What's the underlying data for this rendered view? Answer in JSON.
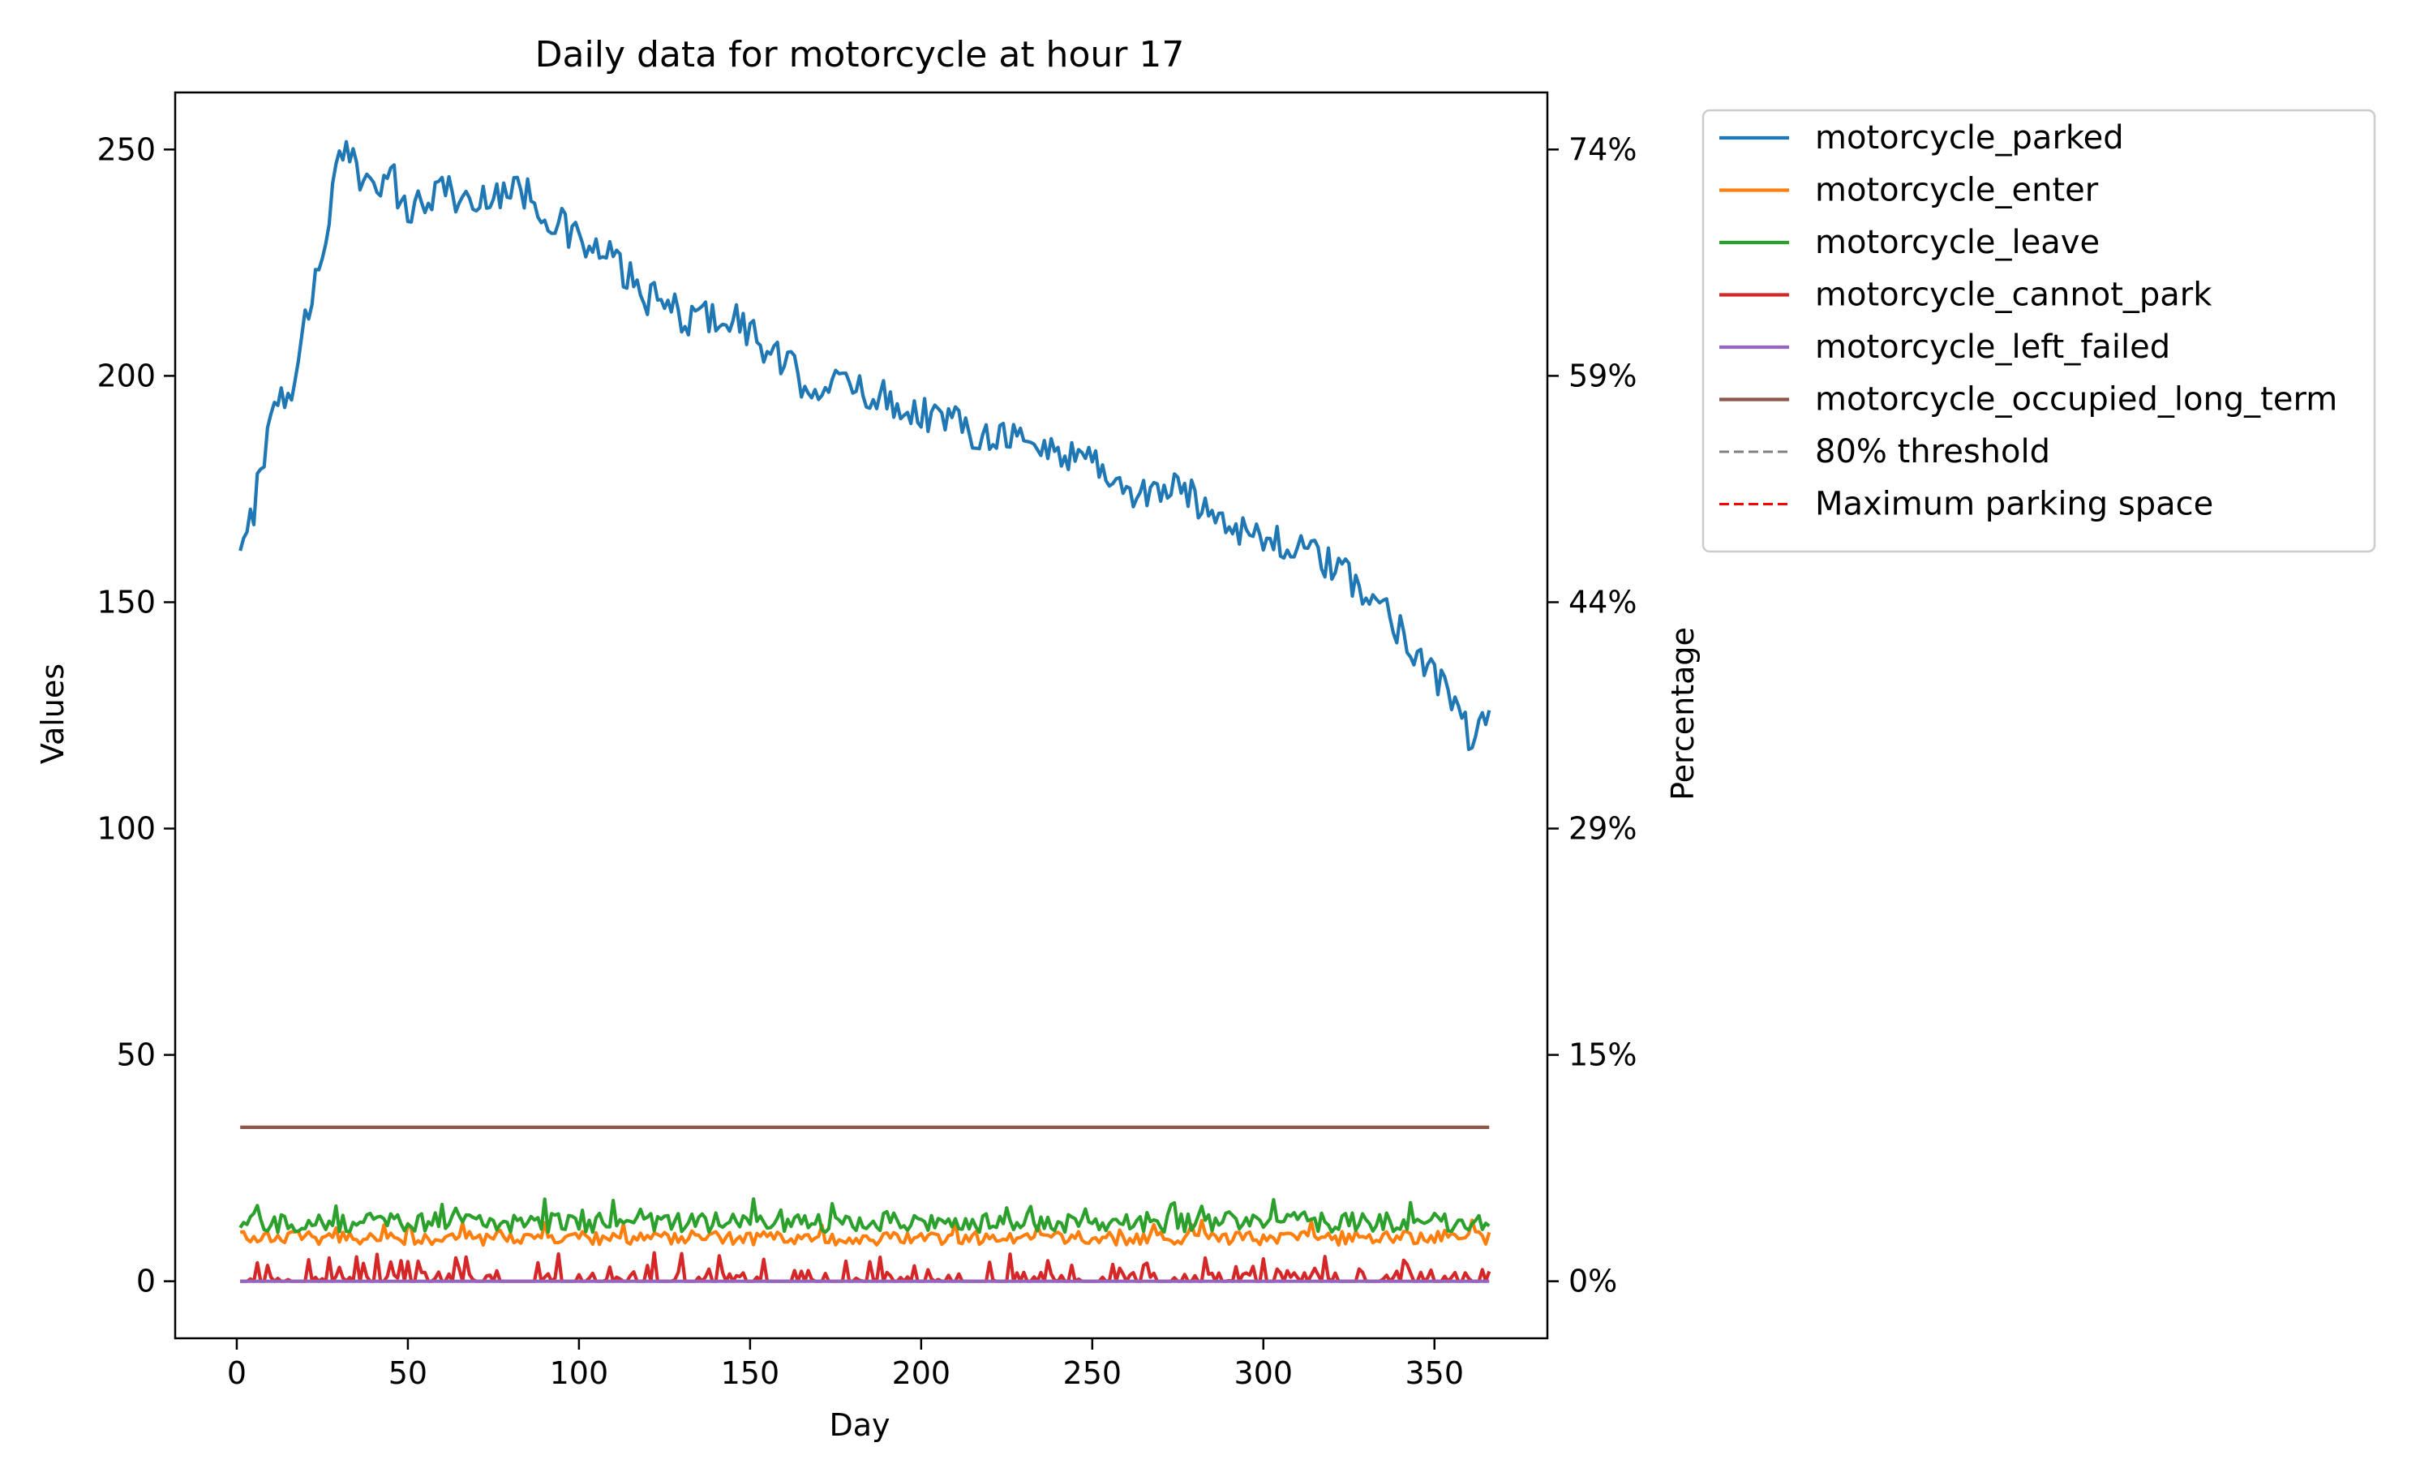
{
  "chart_data": {
    "type": "line",
    "title": "Daily data for motorcycle at hour 17",
    "xlabel": "Day",
    "ylabel": "Values",
    "ylabel_right": "Percentage",
    "xlim": [
      -18,
      383
    ],
    "ylim": [
      -12.6,
      262.6
    ],
    "x_ticks": [
      0,
      50,
      100,
      150,
      200,
      250,
      300,
      350
    ],
    "y_ticks": [
      0,
      50,
      100,
      150,
      200,
      250
    ],
    "right_axis": {
      "tick_values": [
        0,
        50,
        100,
        150,
        200,
        250
      ],
      "tick_labels": [
        "0%",
        "15%",
        "29%",
        "44%",
        "59%",
        "74%"
      ]
    },
    "grid": false,
    "legend_position": "outside-right-top",
    "legend": [
      {
        "label": "motorcycle_parked",
        "color": "#1f77b4",
        "style": "solid"
      },
      {
        "label": "motorcycle_enter",
        "color": "#ff7f0e",
        "style": "solid"
      },
      {
        "label": "motorcycle_leave",
        "color": "#2ca02c",
        "style": "solid"
      },
      {
        "label": "motorcycle_cannot_park",
        "color": "#d62728",
        "style": "solid"
      },
      {
        "label": "motorcycle_left_failed",
        "color": "#9467bd",
        "style": "solid"
      },
      {
        "label": "motorcycle_occupied_long_term",
        "color": "#8c564b",
        "style": "solid"
      },
      {
        "label": "80% threshold",
        "color": "#808080",
        "style": "dashed"
      },
      {
        "label": "Maximum parking space",
        "color": "#ff0000",
        "style": "dashed"
      }
    ],
    "x_range": [
      1,
      366
    ],
    "series": [
      {
        "name": "motorcycle_parked",
        "color": "#1f77b4",
        "anchors": [
          [
            1,
            159
          ],
          [
            3,
            164
          ],
          [
            5,
            171
          ],
          [
            6,
            179
          ],
          [
            8,
            183
          ],
          [
            10,
            190
          ],
          [
            12,
            196
          ],
          [
            14,
            193
          ],
          [
            17,
            201
          ],
          [
            20,
            212
          ],
          [
            22,
            217
          ],
          [
            24,
            225
          ],
          [
            26,
            232
          ],
          [
            28,
            240
          ],
          [
            30,
            248
          ],
          [
            33,
            248
          ],
          [
            36,
            244
          ],
          [
            40,
            245
          ],
          [
            44,
            242
          ],
          [
            46,
            245
          ],
          [
            48,
            236
          ],
          [
            52,
            238
          ],
          [
            56,
            238
          ],
          [
            60,
            243
          ],
          [
            65,
            239
          ],
          [
            70,
            237
          ],
          [
            74,
            241
          ],
          [
            80,
            241
          ],
          [
            86,
            240
          ],
          [
            90,
            236
          ],
          [
            95,
            233
          ],
          [
            100,
            230
          ],
          [
            105,
            227
          ],
          [
            110,
            226
          ],
          [
            115,
            221
          ],
          [
            120,
            217
          ],
          [
            125,
            216
          ],
          [
            130,
            213
          ],
          [
            135,
            213
          ],
          [
            140,
            213
          ],
          [
            145,
            213
          ],
          [
            150,
            210
          ],
          [
            155,
            205
          ],
          [
            160,
            203
          ],
          [
            165,
            199
          ],
          [
            170,
            198
          ],
          [
            175,
            198
          ],
          [
            180,
            198
          ],
          [
            185,
            196
          ],
          [
            190,
            195
          ],
          [
            195,
            193
          ],
          [
            200,
            192
          ],
          [
            205,
            191
          ],
          [
            210,
            190
          ],
          [
            215,
            188
          ],
          [
            220,
            187
          ],
          [
            225,
            188
          ],
          [
            230,
            185
          ],
          [
            235,
            184
          ],
          [
            240,
            183
          ],
          [
            245,
            183
          ],
          [
            250,
            182
          ],
          [
            255,
            178
          ],
          [
            260,
            174
          ],
          [
            265,
            174
          ],
          [
            270,
            175
          ],
          [
            275,
            175
          ],
          [
            280,
            173
          ],
          [
            285,
            170
          ],
          [
            290,
            168
          ],
          [
            295,
            166
          ],
          [
            300,
            164
          ],
          [
            305,
            163
          ],
          [
            310,
            162
          ],
          [
            315,
            160
          ],
          [
            320,
            158
          ],
          [
            325,
            155
          ],
          [
            330,
            152
          ],
          [
            335,
            149
          ],
          [
            340,
            144
          ],
          [
            345,
            139
          ],
          [
            350,
            135
          ],
          [
            354,
            129
          ],
          [
            358,
            125
          ],
          [
            361,
            118
          ],
          [
            363,
            120
          ],
          [
            366,
            126
          ]
        ]
      },
      {
        "name": "motorcycle_enter",
        "color": "#ff7f0e",
        "baseline": 9.5,
        "spread": 1.5
      },
      {
        "name": "motorcycle_leave",
        "color": "#2ca02c",
        "baseline": 13,
        "spread": 2.2
      },
      {
        "name": "motorcycle_cannot_park",
        "color": "#d62728",
        "baseline": 0,
        "spread": 4
      },
      {
        "name": "motorcycle_left_failed",
        "color": "#9467bd",
        "constant": 0
      },
      {
        "name": "motorcycle_occupied_long_term",
        "color": "#8c564b",
        "constant": 34
      }
    ]
  }
}
